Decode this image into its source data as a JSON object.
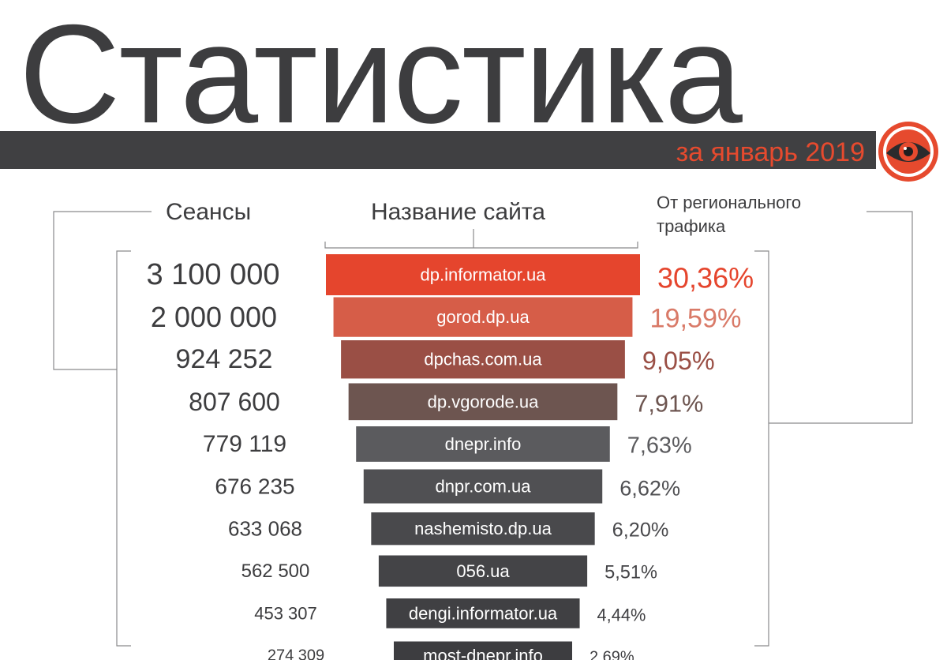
{
  "header": {
    "title": "Статистика",
    "subtitle": "за январь 2019",
    "logo_icon": "eye-logo-icon",
    "band_color": "#404042",
    "accent_color": "#e64a2e"
  },
  "columns": {
    "sessions": "Сеансы",
    "site": "Название сайта",
    "share": "От регионального трафика"
  },
  "chart_data": {
    "type": "bar",
    "orientation": "funnel",
    "categories": [
      "dp.informator.ua",
      "gorod.dp.ua",
      "dpchas.com.ua",
      "dp.vgorode.ua",
      "dnepr.info",
      "dnpr.com.ua",
      "nashemisto.dp.ua",
      "056.ua",
      "dengi.informator.ua",
      "most-dnepr.info"
    ],
    "sessions_labels": [
      "3 100 000",
      "2 000 000",
      "924 252",
      "807 600",
      "779 119",
      "676 235",
      "633 068",
      "562 500",
      "453 307",
      "274 309"
    ],
    "share_labels": [
      "30,36%",
      "19,59%",
      "9,05%",
      "7,91%",
      "7,63%",
      "6,62%",
      "6,20%",
      "5,51%",
      "4,44%",
      "2,69%"
    ],
    "colors": [
      "#e5452d",
      "#d65d48",
      "#9a4f45",
      "#6d5550",
      "#5b5b5e",
      "#505053",
      "#49494c",
      "#444447",
      "#404043",
      "#3d3d40"
    ],
    "share_colors": [
      "#e5452d",
      "#d97a68",
      "#9a4f45",
      "#6d5550",
      "#5b5b5e",
      "#505053",
      "#49494c",
      "#444447",
      "#404043",
      "#3d3d40"
    ]
  }
}
